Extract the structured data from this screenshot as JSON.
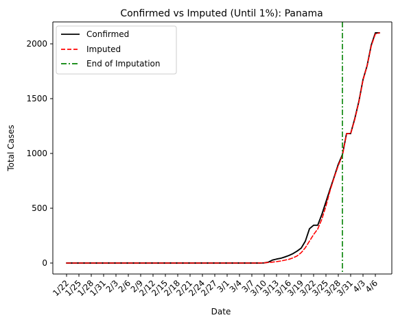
{
  "chart_data": {
    "type": "line",
    "title": "Confirmed vs Imputed (Until 1%): Panama",
    "xlabel": "Date",
    "ylabel": "Total Cases",
    "grid": false,
    "legend_position": "top-left",
    "x_tick_labels": [
      "1/22",
      "1/25",
      "1/28",
      "1/31",
      "2/3",
      "2/6",
      "2/9",
      "2/12",
      "2/15",
      "2/18",
      "2/21",
      "2/24",
      "2/27",
      "3/1",
      "3/4",
      "3/7",
      "3/10",
      "3/13",
      "3/16",
      "3/19",
      "3/22",
      "3/25",
      "3/28",
      "3/31",
      "4/3",
      "4/6"
    ],
    "y_ticks": [
      0,
      500,
      1000,
      1500,
      2000
    ],
    "x_start": "1/22",
    "x_end": "4/6",
    "ylim": [
      -100,
      2200
    ],
    "series": [
      {
        "name": "Confirmed",
        "color": "#000000",
        "style": "solid",
        "x": [
          "1/22",
          "3/7",
          "3/9",
          "3/10",
          "3/11",
          "3/12",
          "3/13",
          "3/14",
          "3/15",
          "3/16",
          "3/17",
          "3/18",
          "3/19",
          "3/20",
          "3/21",
          "3/22",
          "3/23",
          "3/24",
          "3/25",
          "3/26",
          "3/27",
          "3/28",
          "3/29",
          "3/30",
          "3/31",
          "4/1",
          "4/2",
          "4/3",
          "4/4",
          "4/5",
          "4/6",
          "4/7"
        ],
        "values": [
          0,
          0,
          0,
          1,
          8,
          27,
          36,
          43,
          55,
          69,
          86,
          109,
          137,
          200,
          313,
          345,
          345,
          443,
          558,
          674,
          786,
          901,
          989,
          1181,
          1181,
          1317,
          1475,
          1673,
          1801,
          1988,
          2100,
          2100
        ]
      },
      {
        "name": "Imputed",
        "color": "#ff0000",
        "style": "dashed",
        "x": [
          "1/22",
          "3/8",
          "3/10",
          "3/12",
          "3/14",
          "3/16",
          "3/17",
          "3/18",
          "3/19",
          "3/20",
          "3/21",
          "3/22",
          "3/23",
          "3/24",
          "3/25",
          "3/26",
          "3/27",
          "3/28",
          "3/29",
          "3/30",
          "3/31",
          "4/1",
          "4/2",
          "4/3",
          "4/4",
          "4/5",
          "4/6",
          "4/7"
        ],
        "values": [
          0,
          0,
          2,
          8,
          18,
          34,
          47,
          65,
          95,
          140,
          200,
          260,
          310,
          400,
          520,
          660,
          780,
          890,
          980,
          1180,
          1180,
          1310,
          1470,
          1670,
          1800,
          1980,
          2090,
          2100
        ]
      }
    ],
    "vlines": [
      {
        "name": "End of Imputation",
        "x": "3/29",
        "color": "#008000",
        "style": "dashdot"
      }
    ]
  }
}
